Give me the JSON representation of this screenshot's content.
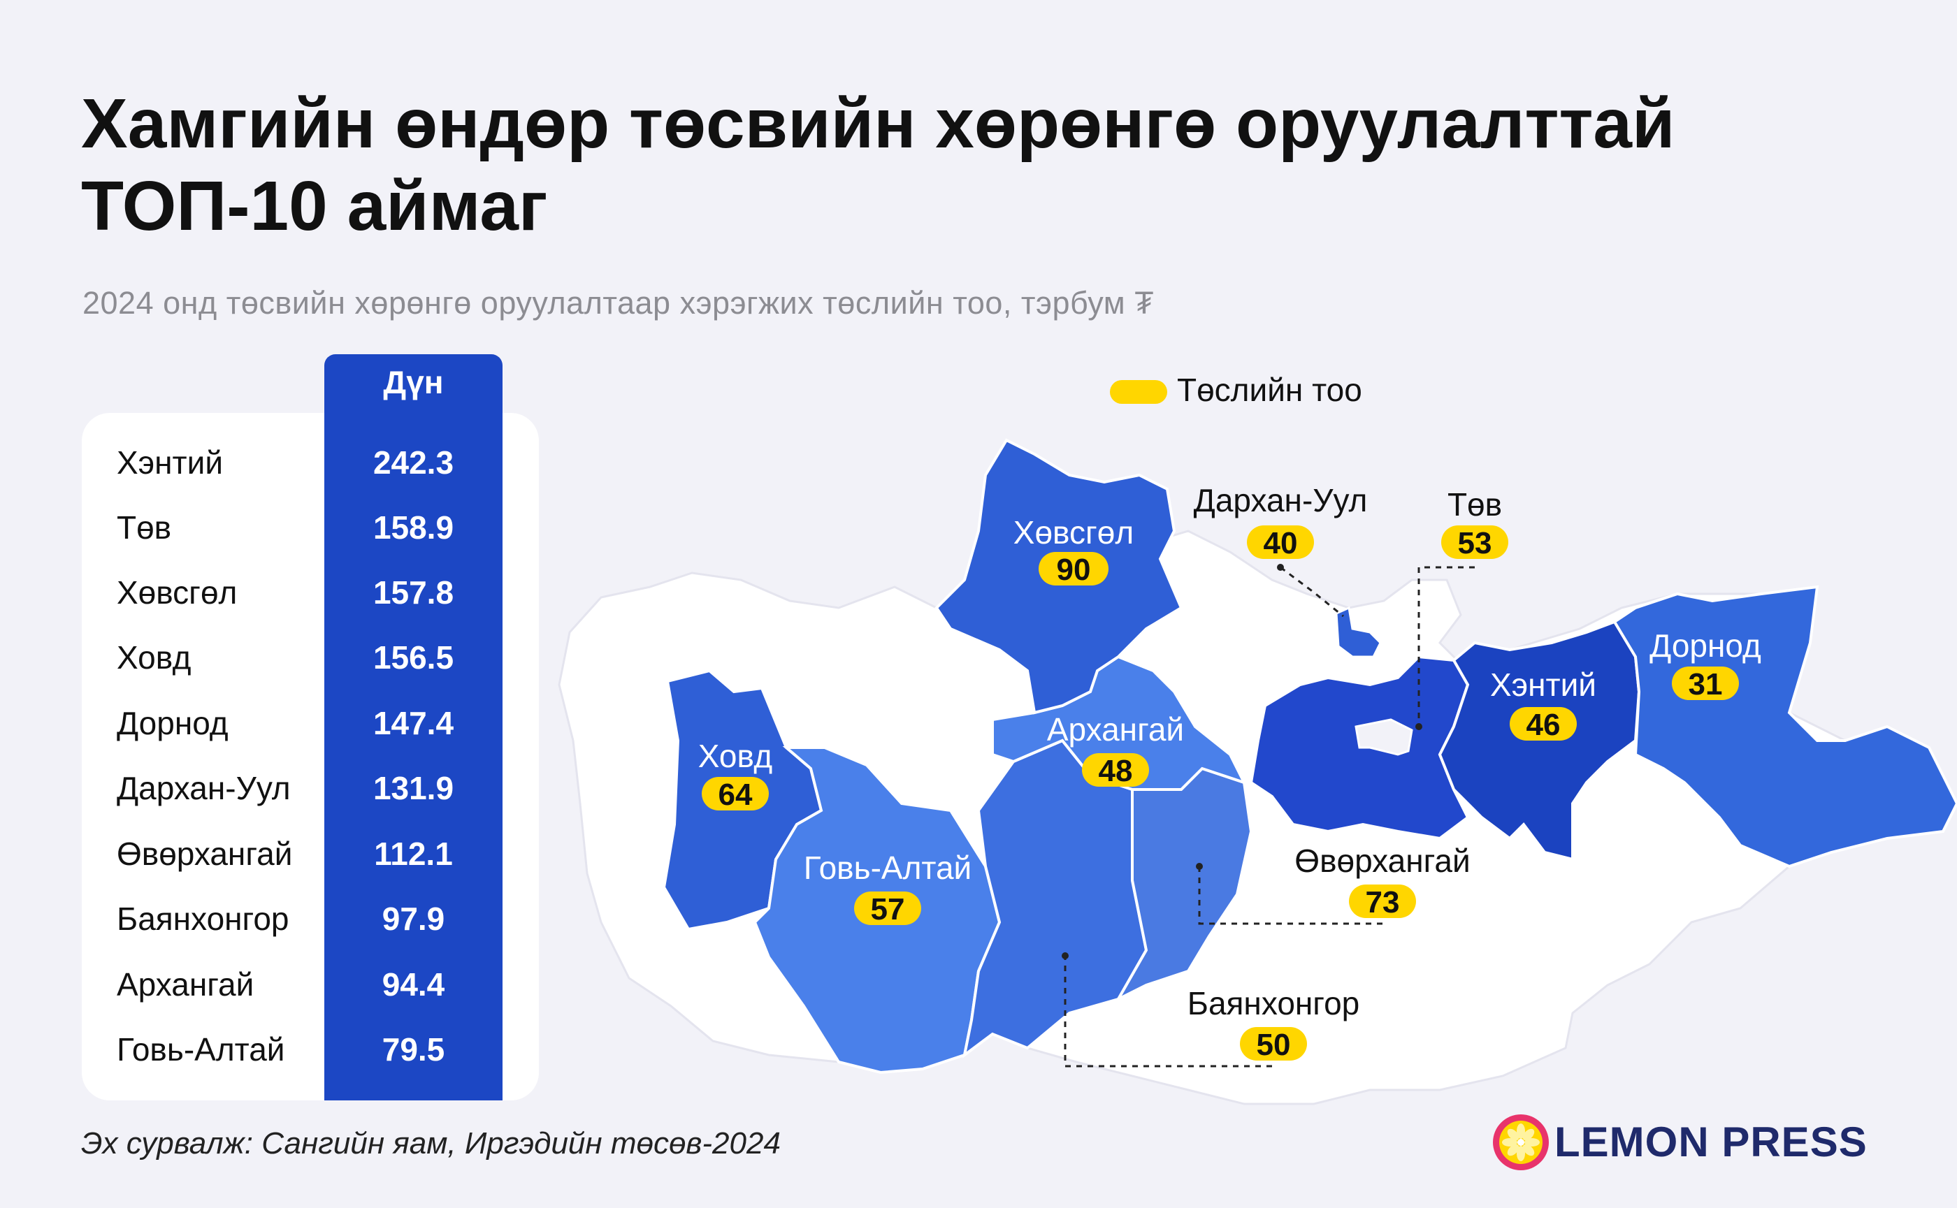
{
  "title_line1": "Хамгийн өндөр төсвийн хөрөнгө оруулалттай",
  "title_line2": "ТОП-10 аймаг",
  "subtitle": "2024 онд төсвийн хөрөнгө оруулалтаар хэрэгжих төслийн тоо, тэрбум ₮",
  "table": {
    "value_header": "Дүн",
    "rows": [
      {
        "name": "Хэнтий",
        "value": "242.3"
      },
      {
        "name": "Төв",
        "value": "158.9"
      },
      {
        "name": "Хөвсгөл",
        "value": "157.8"
      },
      {
        "name": "Ховд",
        "value": "156.5"
      },
      {
        "name": "Дорнод",
        "value": "147.4"
      },
      {
        "name": "Дархан-Уул",
        "value": "131.9"
      },
      {
        "name": "Өвөрхангай",
        "value": "112.1"
      },
      {
        "name": "Баянхонгор",
        "value": "97.9"
      },
      {
        "name": "Архангай",
        "value": "94.4"
      },
      {
        "name": "Говь-Алтай",
        "value": "79.5"
      }
    ]
  },
  "legend": {
    "label": "Төслийн тоо",
    "color": "#ffd600"
  },
  "map": {
    "regions": [
      {
        "key": "khovsgol",
        "name": "Хөвсгөл",
        "projects": "90"
      },
      {
        "key": "darkhan",
        "name": "Дархан-Уул",
        "projects": "40"
      },
      {
        "key": "tov",
        "name": "Төв",
        "projects": "53"
      },
      {
        "key": "khovd",
        "name": "Ховд",
        "projects": "64"
      },
      {
        "key": "arkhangai",
        "name": "Архангай",
        "projects": "48"
      },
      {
        "key": "khentii",
        "name": "Хэнтий",
        "projects": "46"
      },
      {
        "key": "dornod",
        "name": "Дорнод",
        "projects": "31"
      },
      {
        "key": "govialtai",
        "name": "Говь-Алтай",
        "projects": "57"
      },
      {
        "key": "uvurkhangai",
        "name": "Өвөрхангай",
        "projects": "73"
      },
      {
        "key": "bayankhongor",
        "name": "Баянхонгор",
        "projects": "50"
      }
    ],
    "colors": {
      "base": "#ffffff",
      "dark": "#1c47c4",
      "medium": "#2f5fd6",
      "light": "#4a80ea",
      "badge": "#ffd600"
    }
  },
  "source": "Эх сурвалж: Сангийн яам, Иргэдийн төсөв-2024",
  "logo": {
    "text": "LEMON PRESS",
    "icon": "lemon-slice-icon"
  }
}
